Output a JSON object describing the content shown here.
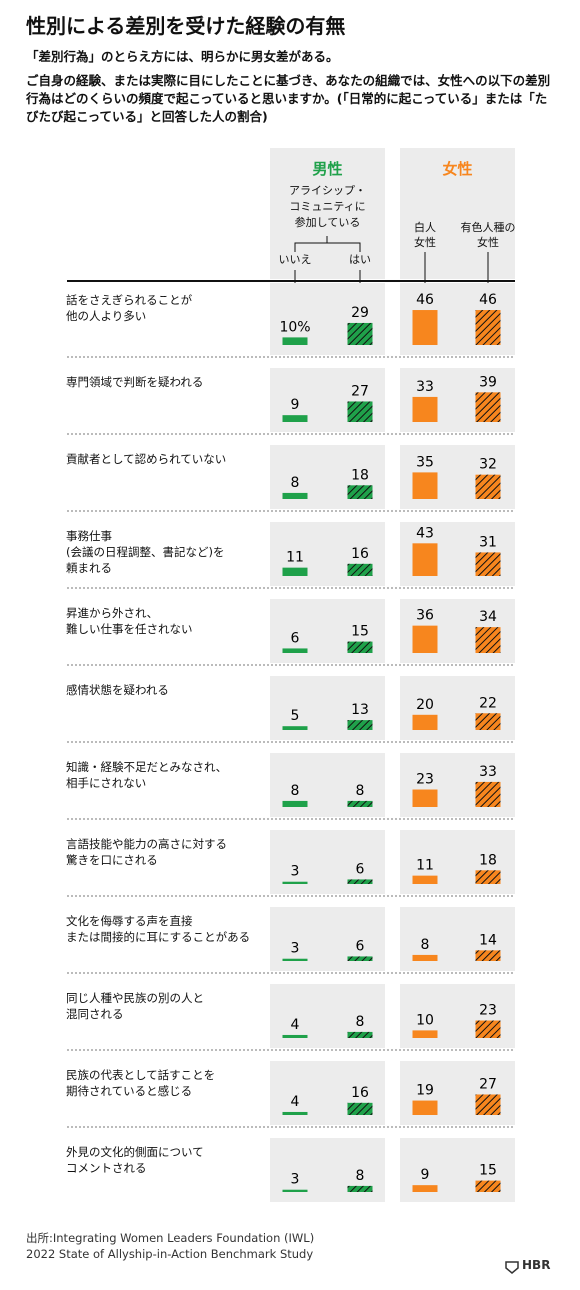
{
  "chart_data": {
    "type": "bar",
    "title": "性別による差別を受けた経験の有無",
    "subtitle": "「差別行為」のとらえ方には、明らかに男女差がある。",
    "question": "ご自身の経験、または実際に目にしたことに基づき、あなたの組織では、女性への以下の差別行為はどのくらいの頻度で起こっていると思いますか。(「日常的に起こっている」または「たびたび起こっている」と回答した人の割合)",
    "groups": [
      {
        "name": "男性",
        "color": "#1fa14a"
      },
      {
        "name": "女性",
        "color": "#f7861e"
      }
    ],
    "men_subheader": "アライシップ・\nコミュニティに\n参加している",
    "categories": [
      "話をさえぎられることが\n他の人より多い",
      "専門領域で判断を疑われる",
      "貢献者として認められていない",
      "事務仕事\n(会議の日程調整、書記など)を\n頼まれる",
      "昇進から外され、\n難しい仕事を任されない",
      "感情状態を疑われる",
      "知識・経験不足だとみなされ、\n相手にされない",
      "言語技能や能力の高さに対する\n驚きを口にされる",
      "文化を侮辱する声を直接\nまたは間接的に耳にすることがある",
      "同じ人種や民族の別の人と\n混同される",
      "民族の代表として話すことを\n期待されていると感じる",
      "外見の文化的側面について\nコメントされる"
    ],
    "series": [
      {
        "name": "いいえ",
        "color": "#1fa14a",
        "hatch": false,
        "values": [
          10,
          9,
          8,
          11,
          6,
          5,
          8,
          3,
          3,
          4,
          4,
          3
        ],
        "value_labels": [
          "10%",
          "9",
          "8",
          "11",
          "6",
          "5",
          "8",
          "3",
          "3",
          "4",
          "4",
          "3"
        ]
      },
      {
        "name": "はい",
        "color": "#1fa14a",
        "hatch": true,
        "values": [
          29,
          27,
          18,
          16,
          15,
          13,
          8,
          6,
          6,
          8,
          16,
          8
        ]
      },
      {
        "name": "白人\n女性",
        "color": "#f7861e",
        "hatch": false,
        "values": [
          46,
          33,
          35,
          43,
          36,
          20,
          23,
          11,
          8,
          10,
          19,
          9
        ]
      },
      {
        "name": "有色人種の\n女性",
        "color": "#f7861e",
        "hatch": true,
        "values": [
          46,
          39,
          32,
          31,
          34,
          22,
          33,
          18,
          14,
          23,
          27,
          15
        ]
      }
    ],
    "source": "出所:Integrating Women Leaders Foundation (IWL)\n2022 State of Allyship-in-Action Benchmark Study",
    "brand": "HBR"
  }
}
